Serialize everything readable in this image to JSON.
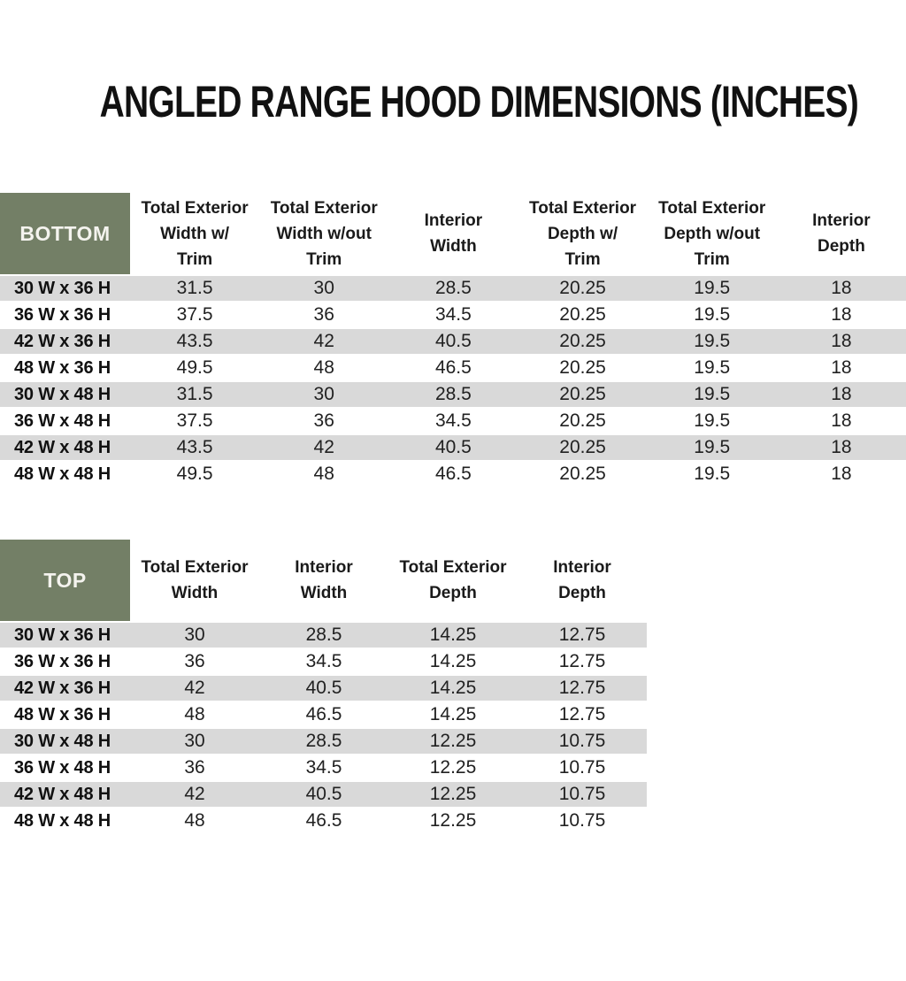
{
  "title": "ANGLED RANGE HOOD DIMENSIONS (INCHES)",
  "colors": {
    "header_green": "#737F66",
    "header_text": "#F4F3EE",
    "stripe_gray": "#D9D9D9"
  },
  "bottom_table": {
    "corner_label": "BOTTOM",
    "columns": [
      "Total Exterior\nWidth w/\nTrim",
      "Total Exterior\nWidth w/out\nTrim",
      "Interior\nWidth",
      "Total Exterior\nDepth w/\nTrim",
      "Total Exterior\nDepth w/out\nTrim",
      "Interior\nDepth"
    ],
    "rows": [
      {
        "label": "30 W x 36 H",
        "values": [
          "31.5",
          "30",
          "28.5",
          "20.25",
          "19.5",
          "18"
        ]
      },
      {
        "label": "36 W x 36 H",
        "values": [
          "37.5",
          "36",
          "34.5",
          "20.25",
          "19.5",
          "18"
        ]
      },
      {
        "label": "42 W x 36 H",
        "values": [
          "43.5",
          "42",
          "40.5",
          "20.25",
          "19.5",
          "18"
        ]
      },
      {
        "label": "48 W x 36 H",
        "values": [
          "49.5",
          "48",
          "46.5",
          "20.25",
          "19.5",
          "18"
        ]
      },
      {
        "label": "30 W x 48 H",
        "values": [
          "31.5",
          "30",
          "28.5",
          "20.25",
          "19.5",
          "18"
        ]
      },
      {
        "label": "36 W x 48 H",
        "values": [
          "37.5",
          "36",
          "34.5",
          "20.25",
          "19.5",
          "18"
        ]
      },
      {
        "label": "42 W x 48 H",
        "values": [
          "43.5",
          "42",
          "40.5",
          "20.25",
          "19.5",
          "18"
        ]
      },
      {
        "label": "48 W x 48 H",
        "values": [
          "49.5",
          "48",
          "46.5",
          "20.25",
          "19.5",
          "18"
        ]
      }
    ]
  },
  "top_table": {
    "corner_label": "TOP",
    "columns": [
      "Total Exterior\nWidth",
      "Interior\nWidth",
      "Total Exterior\nDepth",
      "Interior\nDepth"
    ],
    "rows": [
      {
        "label": "30 W x 36 H",
        "values": [
          "30",
          "28.5",
          "14.25",
          "12.75"
        ]
      },
      {
        "label": "36 W x 36 H",
        "values": [
          "36",
          "34.5",
          "14.25",
          "12.75"
        ]
      },
      {
        "label": "42 W x 36 H",
        "values": [
          "42",
          "40.5",
          "14.25",
          "12.75"
        ]
      },
      {
        "label": "48 W x 36 H",
        "values": [
          "48",
          "46.5",
          "14.25",
          "12.75"
        ]
      },
      {
        "label": "30 W x 48 H",
        "values": [
          "30",
          "28.5",
          "12.25",
          "10.75"
        ]
      },
      {
        "label": "36 W x 48 H",
        "values": [
          "36",
          "34.5",
          "12.25",
          "10.75"
        ]
      },
      {
        "label": "42 W x 48 H",
        "values": [
          "42",
          "40.5",
          "12.25",
          "10.75"
        ]
      },
      {
        "label": "48 W x 48 H",
        "values": [
          "48",
          "46.5",
          "12.25",
          "10.75"
        ]
      }
    ]
  }
}
